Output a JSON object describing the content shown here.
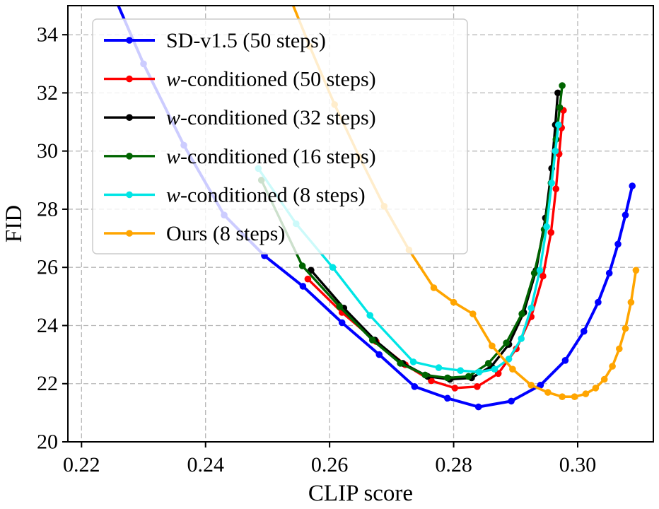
{
  "chart_data": {
    "type": "line",
    "title": "",
    "xlabel": "CLIP score",
    "ylabel": "FID",
    "xlim": [
      0.2178,
      0.3122
    ],
    "ylim": [
      20,
      35
    ],
    "xticks": [
      0.22,
      0.24,
      0.26,
      0.28,
      0.3
    ],
    "xtick_labels": [
      "0.22",
      "0.24",
      "0.26",
      "0.28",
      "0.30"
    ],
    "yticks": [
      20,
      22,
      24,
      26,
      28,
      30,
      32,
      34
    ],
    "ytick_labels": [
      "20",
      "22",
      "24",
      "26",
      "28",
      "30",
      "32",
      "34"
    ],
    "grid": true,
    "grid_style": "dashed",
    "legend_position": "upper-left",
    "series": [
      {
        "id": "sd-v15-50",
        "label": "SD-v1.5 (50 steps)",
        "label_parts": [
          {
            "text": "SD-v1.5 (50 steps)",
            "italic": false
          }
        ],
        "color": "#0000ff",
        "width": 4,
        "x": [
          0.2235,
          0.23,
          0.2365,
          0.243,
          0.2495,
          0.2557,
          0.262,
          0.268,
          0.2737,
          0.279,
          0.284,
          0.2893,
          0.294,
          0.298,
          0.301,
          0.3033,
          0.3051,
          0.3065,
          0.3077,
          0.3088
        ],
        "y": [
          36.2,
          33.0,
          30.2,
          27.8,
          26.4,
          25.35,
          24.1,
          23.0,
          21.9,
          21.5,
          21.2,
          21.4,
          21.95,
          22.8,
          23.8,
          24.8,
          25.8,
          26.8,
          27.8,
          28.8
        ]
      },
      {
        "id": "w-conditioned-50",
        "label": "w-conditioned (50 steps)",
        "label_parts": [
          {
            "text": "w",
            "italic": true
          },
          {
            "text": "-conditioned (50 steps)",
            "italic": false
          }
        ],
        "color": "#ff0000",
        "width": 3.4,
        "x": [
          0.2565,
          0.262,
          0.2675,
          0.2722,
          0.2764,
          0.2802,
          0.2838,
          0.2872,
          0.2901,
          0.2925,
          0.2944,
          0.2957,
          0.2965,
          0.297,
          0.2974,
          0.2977
        ],
        "y": [
          25.6,
          24.45,
          23.45,
          22.65,
          22.1,
          21.85,
          21.9,
          22.35,
          23.2,
          24.3,
          25.7,
          27.2,
          28.7,
          29.9,
          30.8,
          31.4
        ]
      },
      {
        "id": "w-conditioned-32",
        "label": "w-conditioned (32 steps)",
        "label_parts": [
          {
            "text": "w",
            "italic": true
          },
          {
            "text": "-conditioned (32 steps)",
            "italic": false
          }
        ],
        "color": "#000000",
        "width": 3.4,
        "x": [
          0.257,
          0.2623,
          0.2673,
          0.2718,
          0.2758,
          0.2794,
          0.2829,
          0.2861,
          0.2889,
          0.2913,
          0.2933,
          0.2948,
          0.2958,
          0.2964,
          0.2968
        ],
        "y": [
          25.9,
          24.6,
          23.5,
          22.7,
          22.25,
          22.15,
          22.2,
          22.6,
          23.35,
          24.45,
          25.9,
          27.7,
          29.4,
          30.9,
          32.0
        ]
      },
      {
        "id": "w-conditioned-16",
        "label": "w-conditioned (16 steps)",
        "label_parts": [
          {
            "text": "w",
            "italic": true
          },
          {
            "text": "-conditioned (16 steps)",
            "italic": false
          }
        ],
        "color": "#006400",
        "width": 3.4,
        "x": [
          0.249,
          0.2556,
          0.2616,
          0.2669,
          0.2714,
          0.2754,
          0.279,
          0.2824,
          0.2856,
          0.2885,
          0.291,
          0.293,
          0.2946,
          0.2957,
          0.2965,
          0.2971,
          0.2975
        ],
        "y": [
          29.0,
          26.05,
          24.65,
          23.5,
          22.7,
          22.3,
          22.2,
          22.25,
          22.7,
          23.4,
          24.4,
          25.8,
          27.3,
          28.9,
          30.4,
          31.5,
          32.25
        ]
      },
      {
        "id": "w-conditioned-8",
        "label": "w-conditioned (8 steps)",
        "label_parts": [
          {
            "text": "w",
            "italic": true
          },
          {
            "text": "-conditioned (8 steps)",
            "italic": false
          }
        ],
        "color": "#00e5e5",
        "width": 3.4,
        "x": [
          0.2485,
          0.2546,
          0.2605,
          0.2665,
          0.2735,
          0.2776,
          0.2811,
          0.2841,
          0.2866,
          0.2889,
          0.2909,
          0.2925,
          0.2939,
          0.295,
          0.2958,
          0.2964,
          0.2969
        ],
        "y": [
          29.4,
          27.5,
          26.0,
          24.35,
          22.75,
          22.55,
          22.45,
          22.4,
          22.5,
          22.85,
          23.55,
          24.6,
          25.9,
          27.4,
          28.9,
          30.0,
          30.9
        ]
      },
      {
        "id": "ours-8",
        "label": "Ours (8 steps)",
        "label_parts": [
          {
            "text": "Ours (8 steps)",
            "italic": false
          }
        ],
        "color": "#ffa500",
        "width": 3.6,
        "x": [
          0.253,
          0.2568,
          0.2608,
          0.2648,
          0.2688,
          0.2728,
          0.2768,
          0.28,
          0.2831,
          0.2862,
          0.2895,
          0.2925,
          0.2952,
          0.2975,
          0.2995,
          0.3013,
          0.3029,
          0.3043,
          0.3056,
          0.3067,
          0.3077,
          0.3086,
          0.3094
        ],
        "y": [
          35.6,
          33.6,
          31.6,
          29.8,
          28.1,
          26.6,
          25.3,
          24.8,
          24.4,
          23.3,
          22.5,
          21.95,
          21.7,
          21.55,
          21.55,
          21.65,
          21.85,
          22.15,
          22.6,
          23.2,
          23.9,
          24.8,
          25.9
        ]
      }
    ]
  }
}
